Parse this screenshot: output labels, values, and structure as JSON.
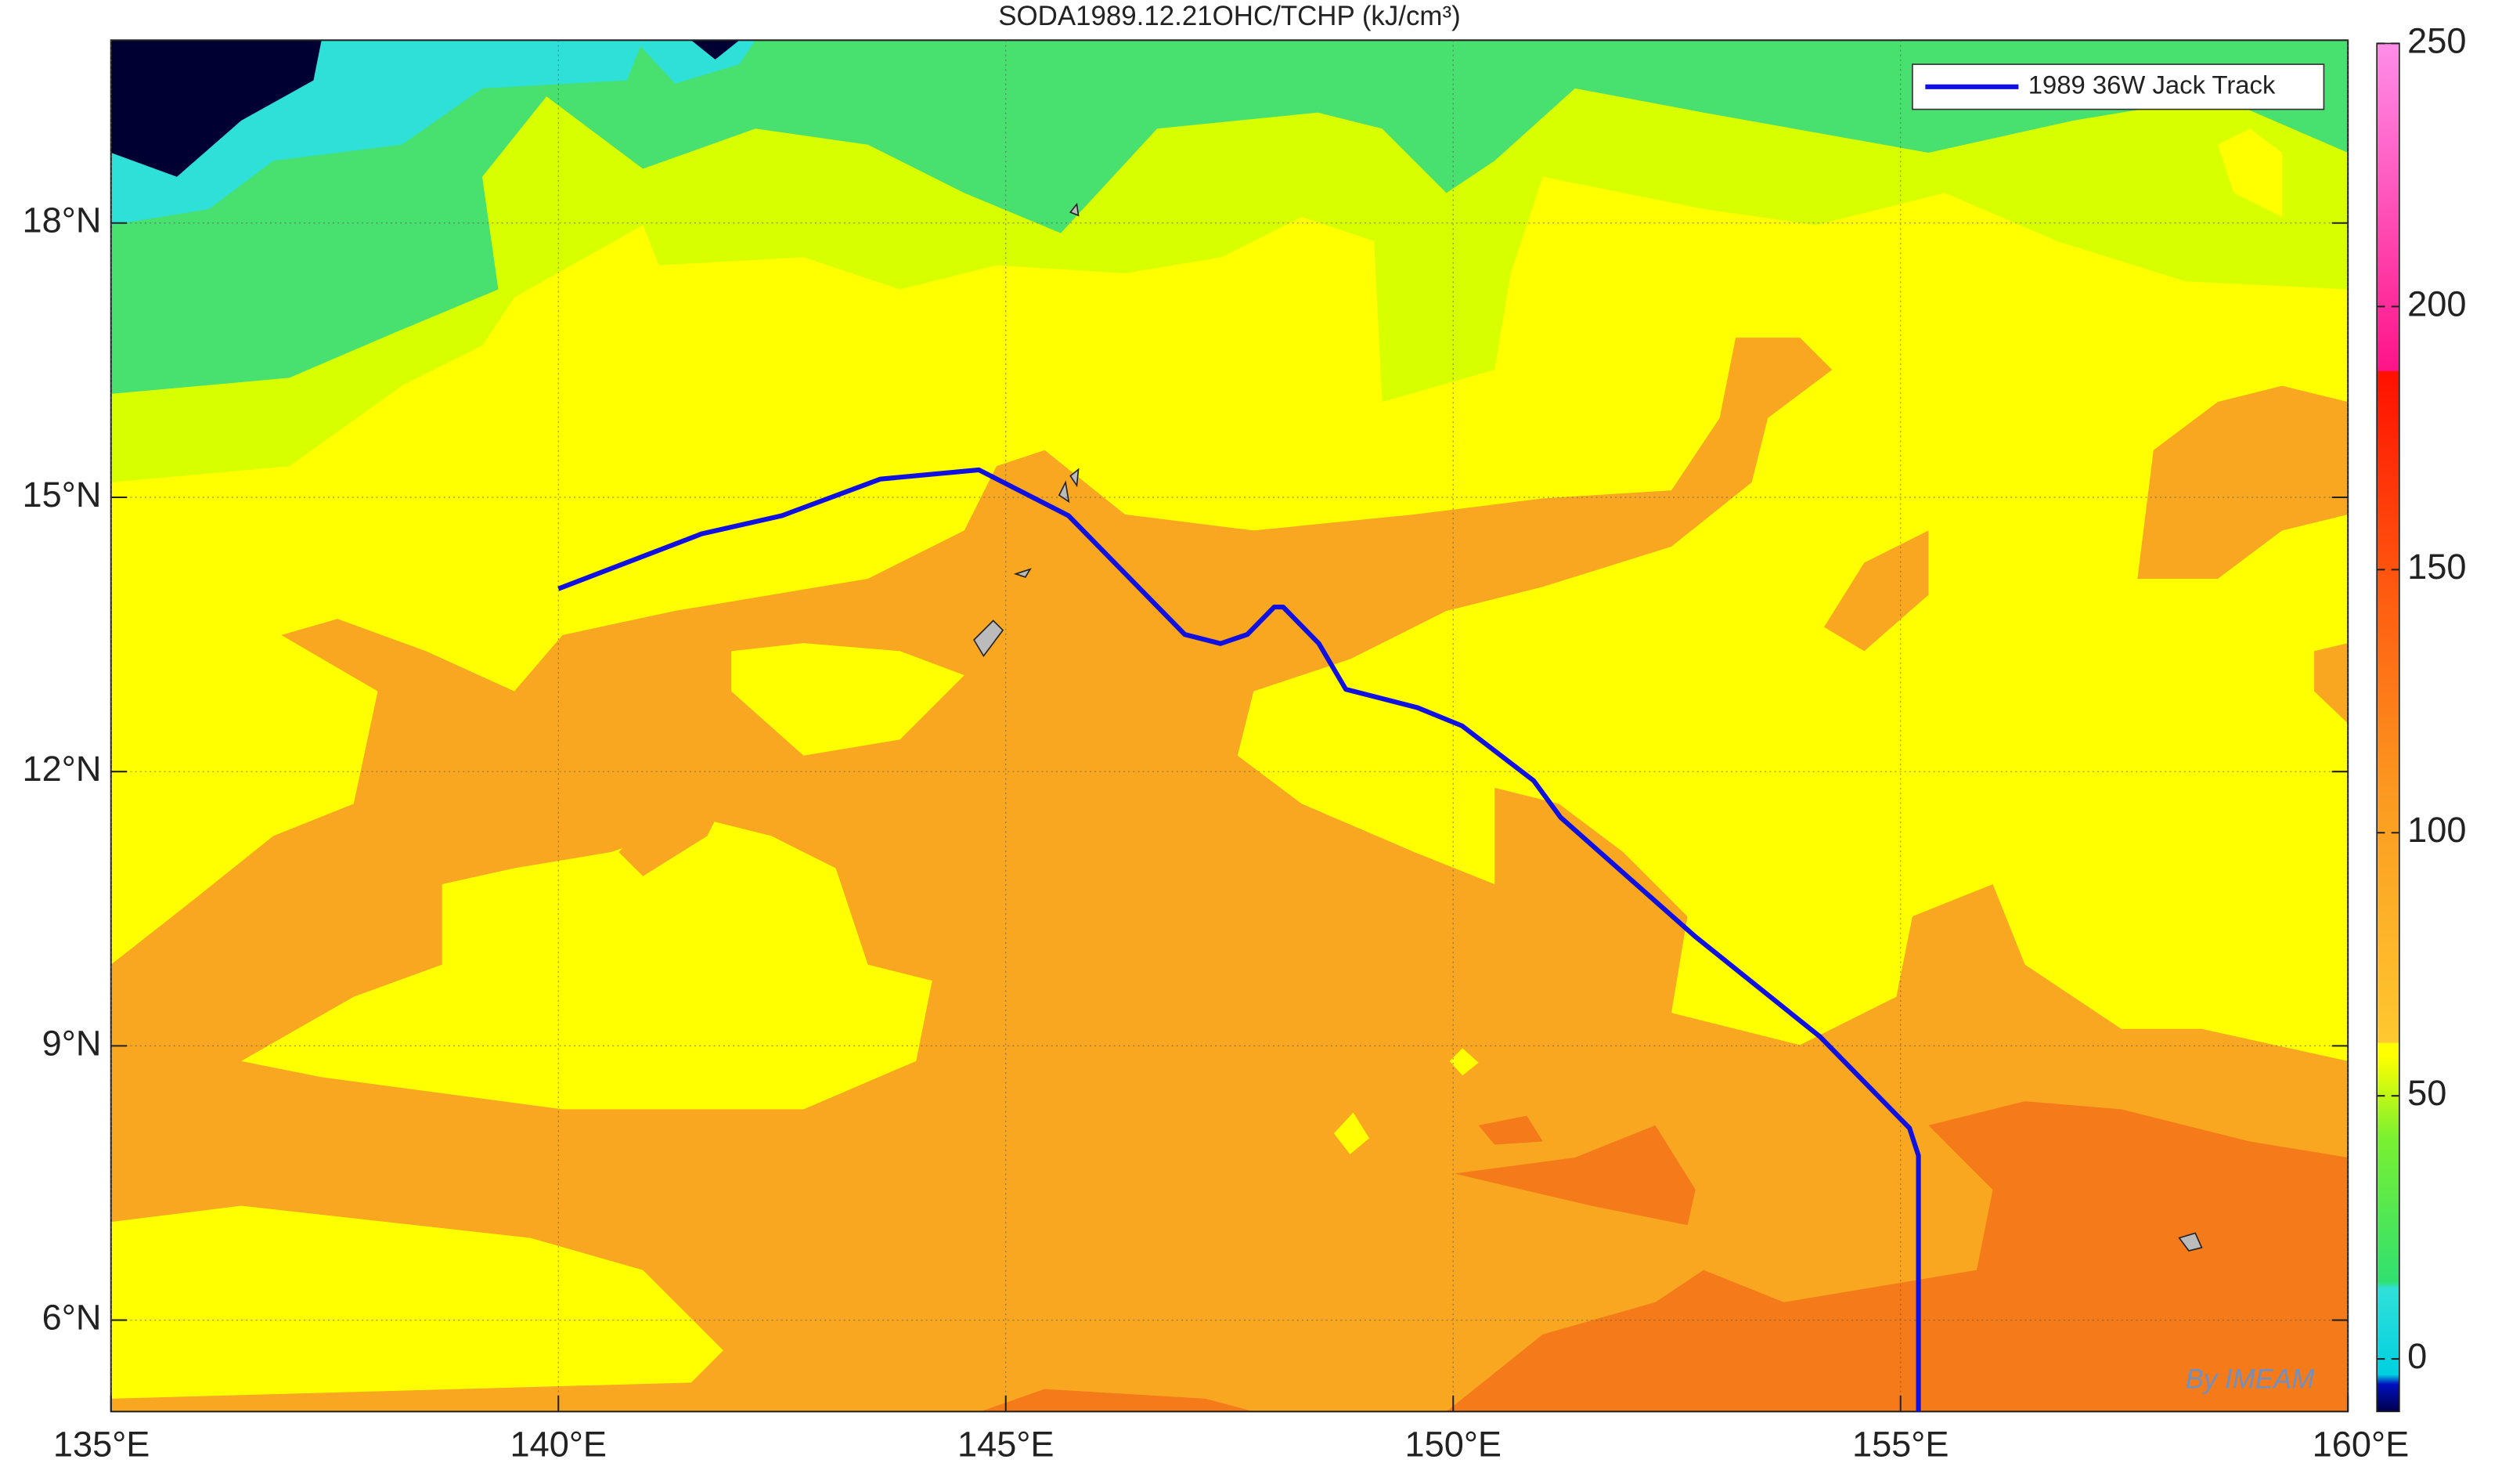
{
  "chart_data": {
    "type": "map",
    "title": "SODA1989.12.21OHC/TCHP (kJ/cm³)",
    "x": [
      140.0,
      141.6,
      142.5,
      143.6,
      144.7,
      145.7,
      147.0,
      147.4,
      147.7,
      148.0,
      148.1,
      148.5,
      148.8,
      149.6,
      150.1,
      150.9,
      151.2,
      152.7,
      154.1,
      155.1,
      155.2,
      155.2
    ],
    "series": [
      {
        "name": "1989 36W Jack Track",
        "color": "#1010e0",
        "values": [
          14.0,
          14.6,
          14.8,
          15.2,
          15.3,
          14.8,
          13.5,
          13.4,
          13.5,
          13.8,
          13.8,
          13.4,
          12.9,
          12.7,
          12.5,
          11.9,
          11.5,
          10.2,
          9.1,
          8.1,
          7.8,
          5.0
        ]
      }
    ],
    "xlim": [
      135,
      160
    ],
    "ylim": [
      5,
      20
    ],
    "xticks": [
      {
        "value": 135,
        "label": "135°E"
      },
      {
        "value": 140,
        "label": "140°E"
      },
      {
        "value": 145,
        "label": "145°E"
      },
      {
        "value": 150,
        "label": "150°E"
      },
      {
        "value": 155,
        "label": "155°E"
      },
      {
        "value": 160,
        "label": "160°E"
      }
    ],
    "yticks": [
      {
        "value": 6,
        "label": "6°N"
      },
      {
        "value": 9,
        "label": "9°N"
      },
      {
        "value": 12,
        "label": "12°N"
      },
      {
        "value": 15,
        "label": "15°N"
      },
      {
        "value": 18,
        "label": "18°N"
      }
    ],
    "grid": true,
    "legend": "upper right",
    "colorbar": {
      "clim": [
        -10,
        250
      ],
      "ticks": [
        0,
        50,
        100,
        150,
        200,
        250
      ]
    },
    "watermark": "By IMEAM"
  }
}
